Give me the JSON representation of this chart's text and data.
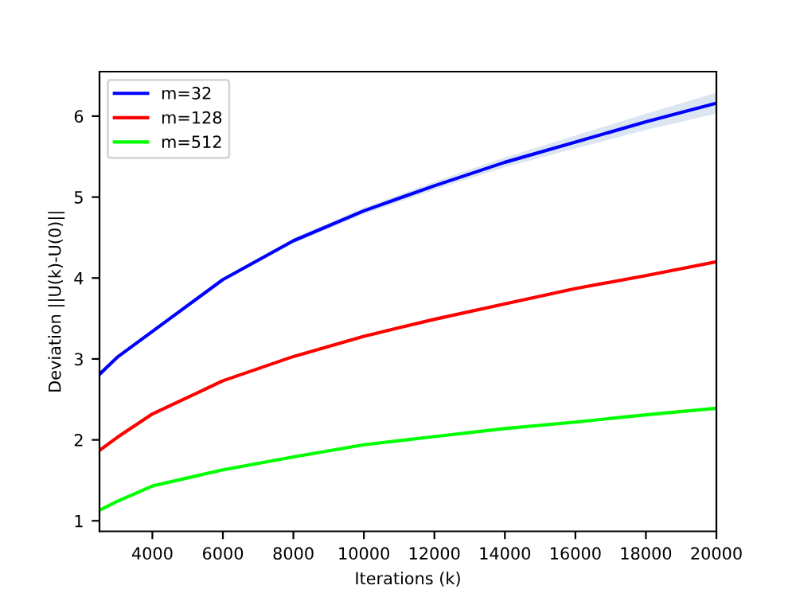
{
  "chart_data": {
    "type": "line",
    "xlabel": "Iterations (k)",
    "ylabel": "Deviation ||U(k)-U(0)||",
    "xlim": [
      2500,
      20000
    ],
    "xticks": [
      4000,
      6000,
      8000,
      10000,
      12000,
      14000,
      16000,
      18000,
      20000
    ],
    "ylim": [
      0.87,
      6.55
    ],
    "yticks": [
      1,
      2,
      3,
      4,
      5,
      6
    ],
    "grid": false,
    "legend": "top left",
    "x": [
      2500,
      3000,
      4000,
      6000,
      8000,
      10000,
      12000,
      14000,
      16000,
      18000,
      20000
    ],
    "series": [
      {
        "name": "m=32",
        "color": "#0000ff",
        "values": [
          2.81,
          3.02,
          3.34,
          3.98,
          4.46,
          4.83,
          5.14,
          5.43,
          5.68,
          5.93,
          6.16
        ],
        "lower": [
          2.8,
          3.01,
          3.33,
          3.96,
          4.43,
          4.79,
          5.09,
          5.37,
          5.6,
          5.83,
          6.03
        ],
        "upper": [
          2.82,
          3.03,
          3.35,
          4.0,
          4.49,
          4.87,
          5.19,
          5.49,
          5.76,
          6.03,
          6.29
        ]
      },
      {
        "name": "m=128",
        "color": "#ff0000",
        "values": [
          1.87,
          2.03,
          2.32,
          2.73,
          3.03,
          3.28,
          3.49,
          3.68,
          3.87,
          4.03,
          4.2
        ]
      },
      {
        "name": "m=512",
        "color": "#00ff00",
        "values": [
          1.13,
          1.24,
          1.43,
          1.63,
          1.79,
          1.94,
          2.04,
          2.14,
          2.22,
          2.31,
          2.39
        ]
      }
    ]
  }
}
